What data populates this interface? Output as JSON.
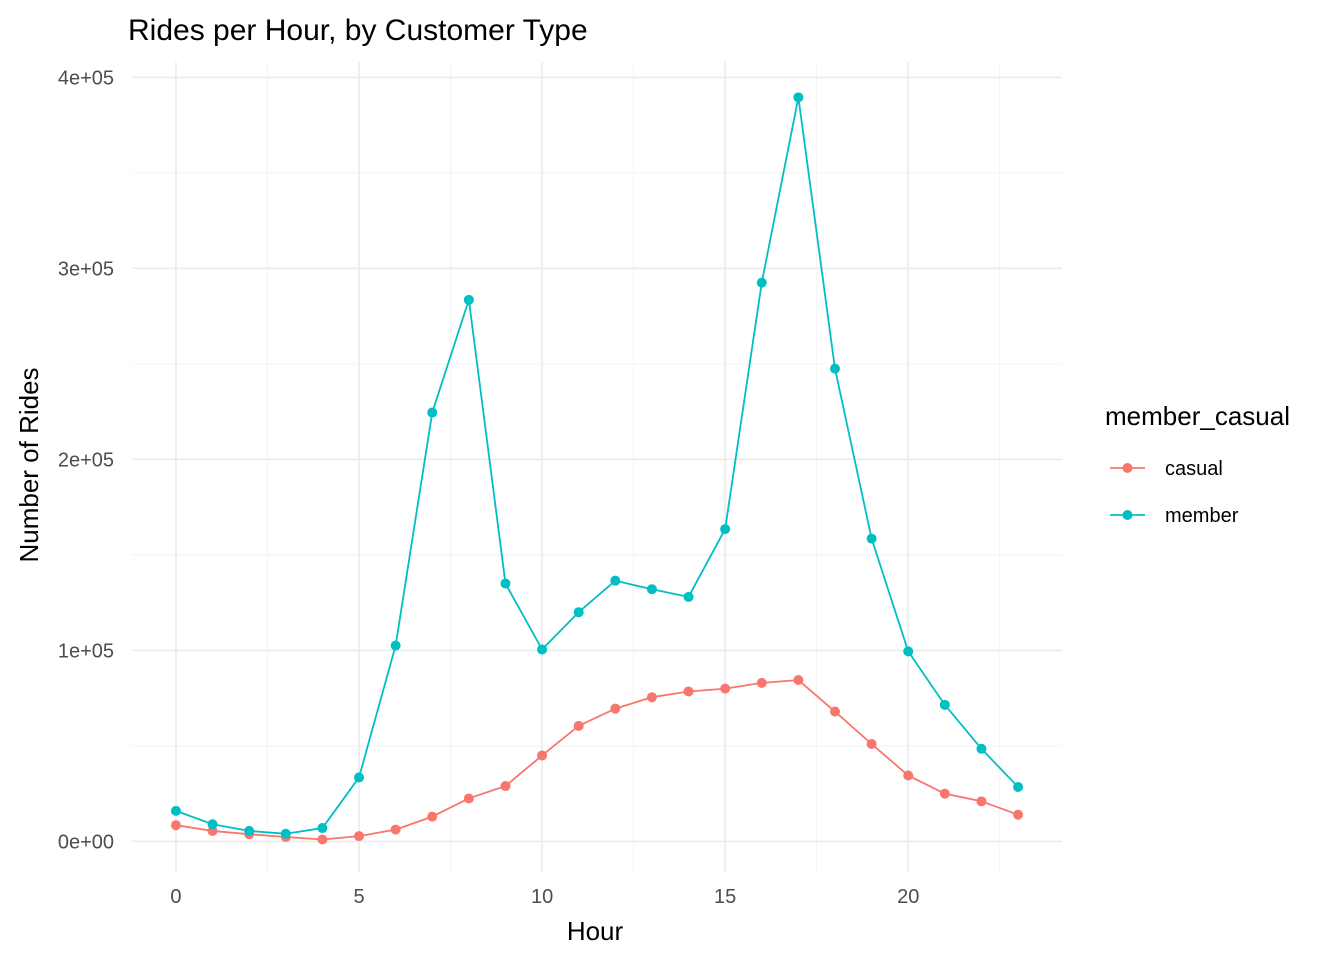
{
  "chart_data": {
    "type": "line",
    "title": "Rides per Hour, by Customer Type",
    "xlabel": "Hour",
    "ylabel": "Number of Rides",
    "xlim": [
      -1.2,
      24.2
    ],
    "ylim": [
      -16000,
      408000
    ],
    "x_ticks": [
      0,
      5,
      10,
      15,
      20
    ],
    "x_tick_labels": [
      "0",
      "5",
      "10",
      "15",
      "20"
    ],
    "y_ticks": [
      0,
      100000,
      200000,
      300000,
      400000
    ],
    "y_tick_labels": [
      "0e+00",
      "1e+05",
      "2e+05",
      "3e+05",
      "4e+05"
    ],
    "grid": true,
    "legend": {
      "title": "member_casual",
      "placement": "right"
    },
    "x": [
      0,
      1,
      2,
      3,
      4,
      5,
      6,
      7,
      8,
      9,
      10,
      11,
      12,
      13,
      14,
      15,
      16,
      17,
      18,
      19,
      20,
      21,
      22,
      23
    ],
    "series": [
      {
        "name": "casual",
        "color": "#F8766D",
        "values": [
          8500,
          5500,
          3800,
          2300,
          1000,
          2800,
          6200,
          13000,
          22500,
          29000,
          45000,
          60500,
          69500,
          75500,
          78500,
          80000,
          83000,
          84500,
          68000,
          51000,
          34500,
          25000,
          21000,
          14000
        ]
      },
      {
        "name": "member",
        "color": "#00BFC4",
        "values": [
          16000,
          9000,
          5500,
          4000,
          7000,
          33500,
          102500,
          224500,
          283500,
          135000,
          100500,
          120000,
          136500,
          132000,
          128000,
          163500,
          292500,
          389500,
          247500,
          158500,
          99500,
          71500,
          48500,
          28500
        ]
      }
    ]
  }
}
